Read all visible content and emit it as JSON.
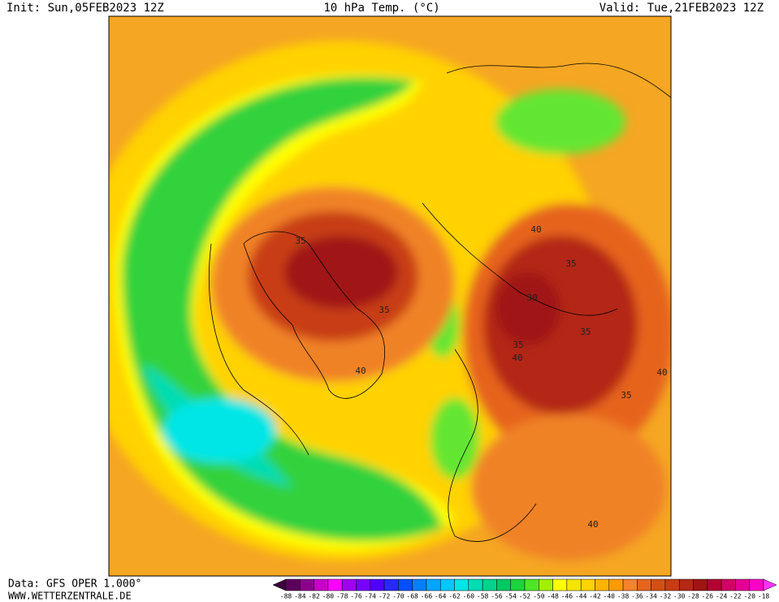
{
  "header": {
    "init": "Init: Sun,05FEB2023 12Z",
    "title": "10 hPa Temp. (°C)",
    "valid": "Valid: Tue,21FEB2023 12Z"
  },
  "footer": {
    "data": "Data: GFS OPER 1.000°",
    "site": "WWW.WETTERZENTRALE.DE"
  },
  "map": {
    "contour_labels": [
      "35",
      "35",
      "40",
      "40",
      "30",
      "35",
      "35",
      "35",
      "40",
      "40",
      "35",
      "40"
    ]
  },
  "colorbar": {
    "levels": [
      -88,
      -84,
      -82,
      -80,
      -78,
      -76,
      -74,
      -72,
      -70,
      -68,
      -66,
      -64,
      -62,
      -60,
      -58,
      -56,
      -54,
      -52,
      -50,
      -48,
      -46,
      -44,
      -42,
      -40,
      -38,
      -36,
      -34,
      -32,
      -30,
      -28,
      -26,
      -24,
      -22,
      -20,
      -18
    ],
    "colors": [
      "#3c003c",
      "#5a005a",
      "#8c008c",
      "#c800c8",
      "#ff00ff",
      "#a000f0",
      "#7800ff",
      "#5000ff",
      "#2828ff",
      "#0050ff",
      "#0080ff",
      "#00a5ff",
      "#00c8ff",
      "#00e6e6",
      "#00dcb4",
      "#00d28c",
      "#00c864",
      "#1ed23c",
      "#50e628",
      "#a0f000",
      "#ffff00",
      "#f5e600",
      "#ffd200",
      "#ffb400",
      "#ff9b00",
      "#f5822d",
      "#e6641e",
      "#d25014",
      "#c83c14",
      "#b42814",
      "#a01414",
      "#b40032",
      "#d20064",
      "#e60096",
      "#ff00c8",
      "#ff32ff"
    ]
  }
}
